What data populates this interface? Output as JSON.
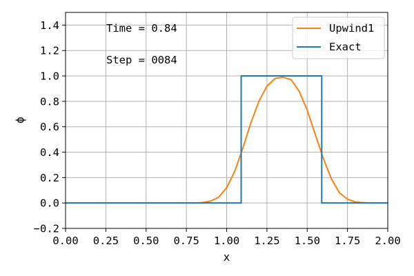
{
  "chart_data": {
    "type": "line",
    "xlabel": "x",
    "ylabel": "ϕ",
    "xlim": [
      0,
      2
    ],
    "ylim": [
      -0.2,
      1.5
    ],
    "grid": true,
    "legend_position": "top-right",
    "x_ticks": [
      {
        "value": 0.0,
        "label": "0.00"
      },
      {
        "value": 0.25,
        "label": "0.25"
      },
      {
        "value": 0.5,
        "label": "0.50"
      },
      {
        "value": 0.75,
        "label": "0.75"
      },
      {
        "value": 1.0,
        "label": "1.00"
      },
      {
        "value": 1.25,
        "label": "1.25"
      },
      {
        "value": 1.5,
        "label": "1.50"
      },
      {
        "value": 1.75,
        "label": "1.75"
      },
      {
        "value": 2.0,
        "label": "2.00"
      }
    ],
    "y_ticks": [
      {
        "value": -0.2,
        "label": "−0.2"
      },
      {
        "value": 0.0,
        "label": "0.0"
      },
      {
        "value": 0.2,
        "label": "0.2"
      },
      {
        "value": 0.4,
        "label": "0.4"
      },
      {
        "value": 0.6,
        "label": "0.6"
      },
      {
        "value": 0.8,
        "label": "0.8"
      },
      {
        "value": 1.0,
        "label": "1.0"
      },
      {
        "value": 1.2,
        "label": "1.2"
      },
      {
        "value": 1.4,
        "label": "1.4"
      }
    ],
    "annotations": [
      {
        "text": "Time = 0.84"
      },
      {
        "text": "Step = 0084"
      }
    ],
    "series": [
      {
        "name": "Upwind1",
        "color": "#ff7f0e",
        "x": [
          0.0,
          0.5,
          0.8,
          0.85,
          0.9,
          0.95,
          1.0,
          1.05,
          1.1,
          1.15,
          1.2,
          1.25,
          1.3,
          1.35,
          1.4,
          1.45,
          1.5,
          1.55,
          1.6,
          1.65,
          1.7,
          1.75,
          1.8,
          1.85,
          1.9,
          2.0
        ],
        "y": [
          0.0,
          0.0,
          0.0,
          0.003,
          0.015,
          0.045,
          0.12,
          0.25,
          0.43,
          0.63,
          0.8,
          0.92,
          0.98,
          0.99,
          0.97,
          0.88,
          0.73,
          0.54,
          0.35,
          0.19,
          0.08,
          0.03,
          0.008,
          0.002,
          0.0,
          0.0
        ]
      },
      {
        "name": "Exact",
        "color": "#1f77b4",
        "x": [
          0.0,
          1.09,
          1.09,
          1.59,
          1.59,
          2.0
        ],
        "y": [
          0.0,
          0.0,
          1.0,
          1.0,
          0.0,
          0.0
        ]
      }
    ]
  }
}
